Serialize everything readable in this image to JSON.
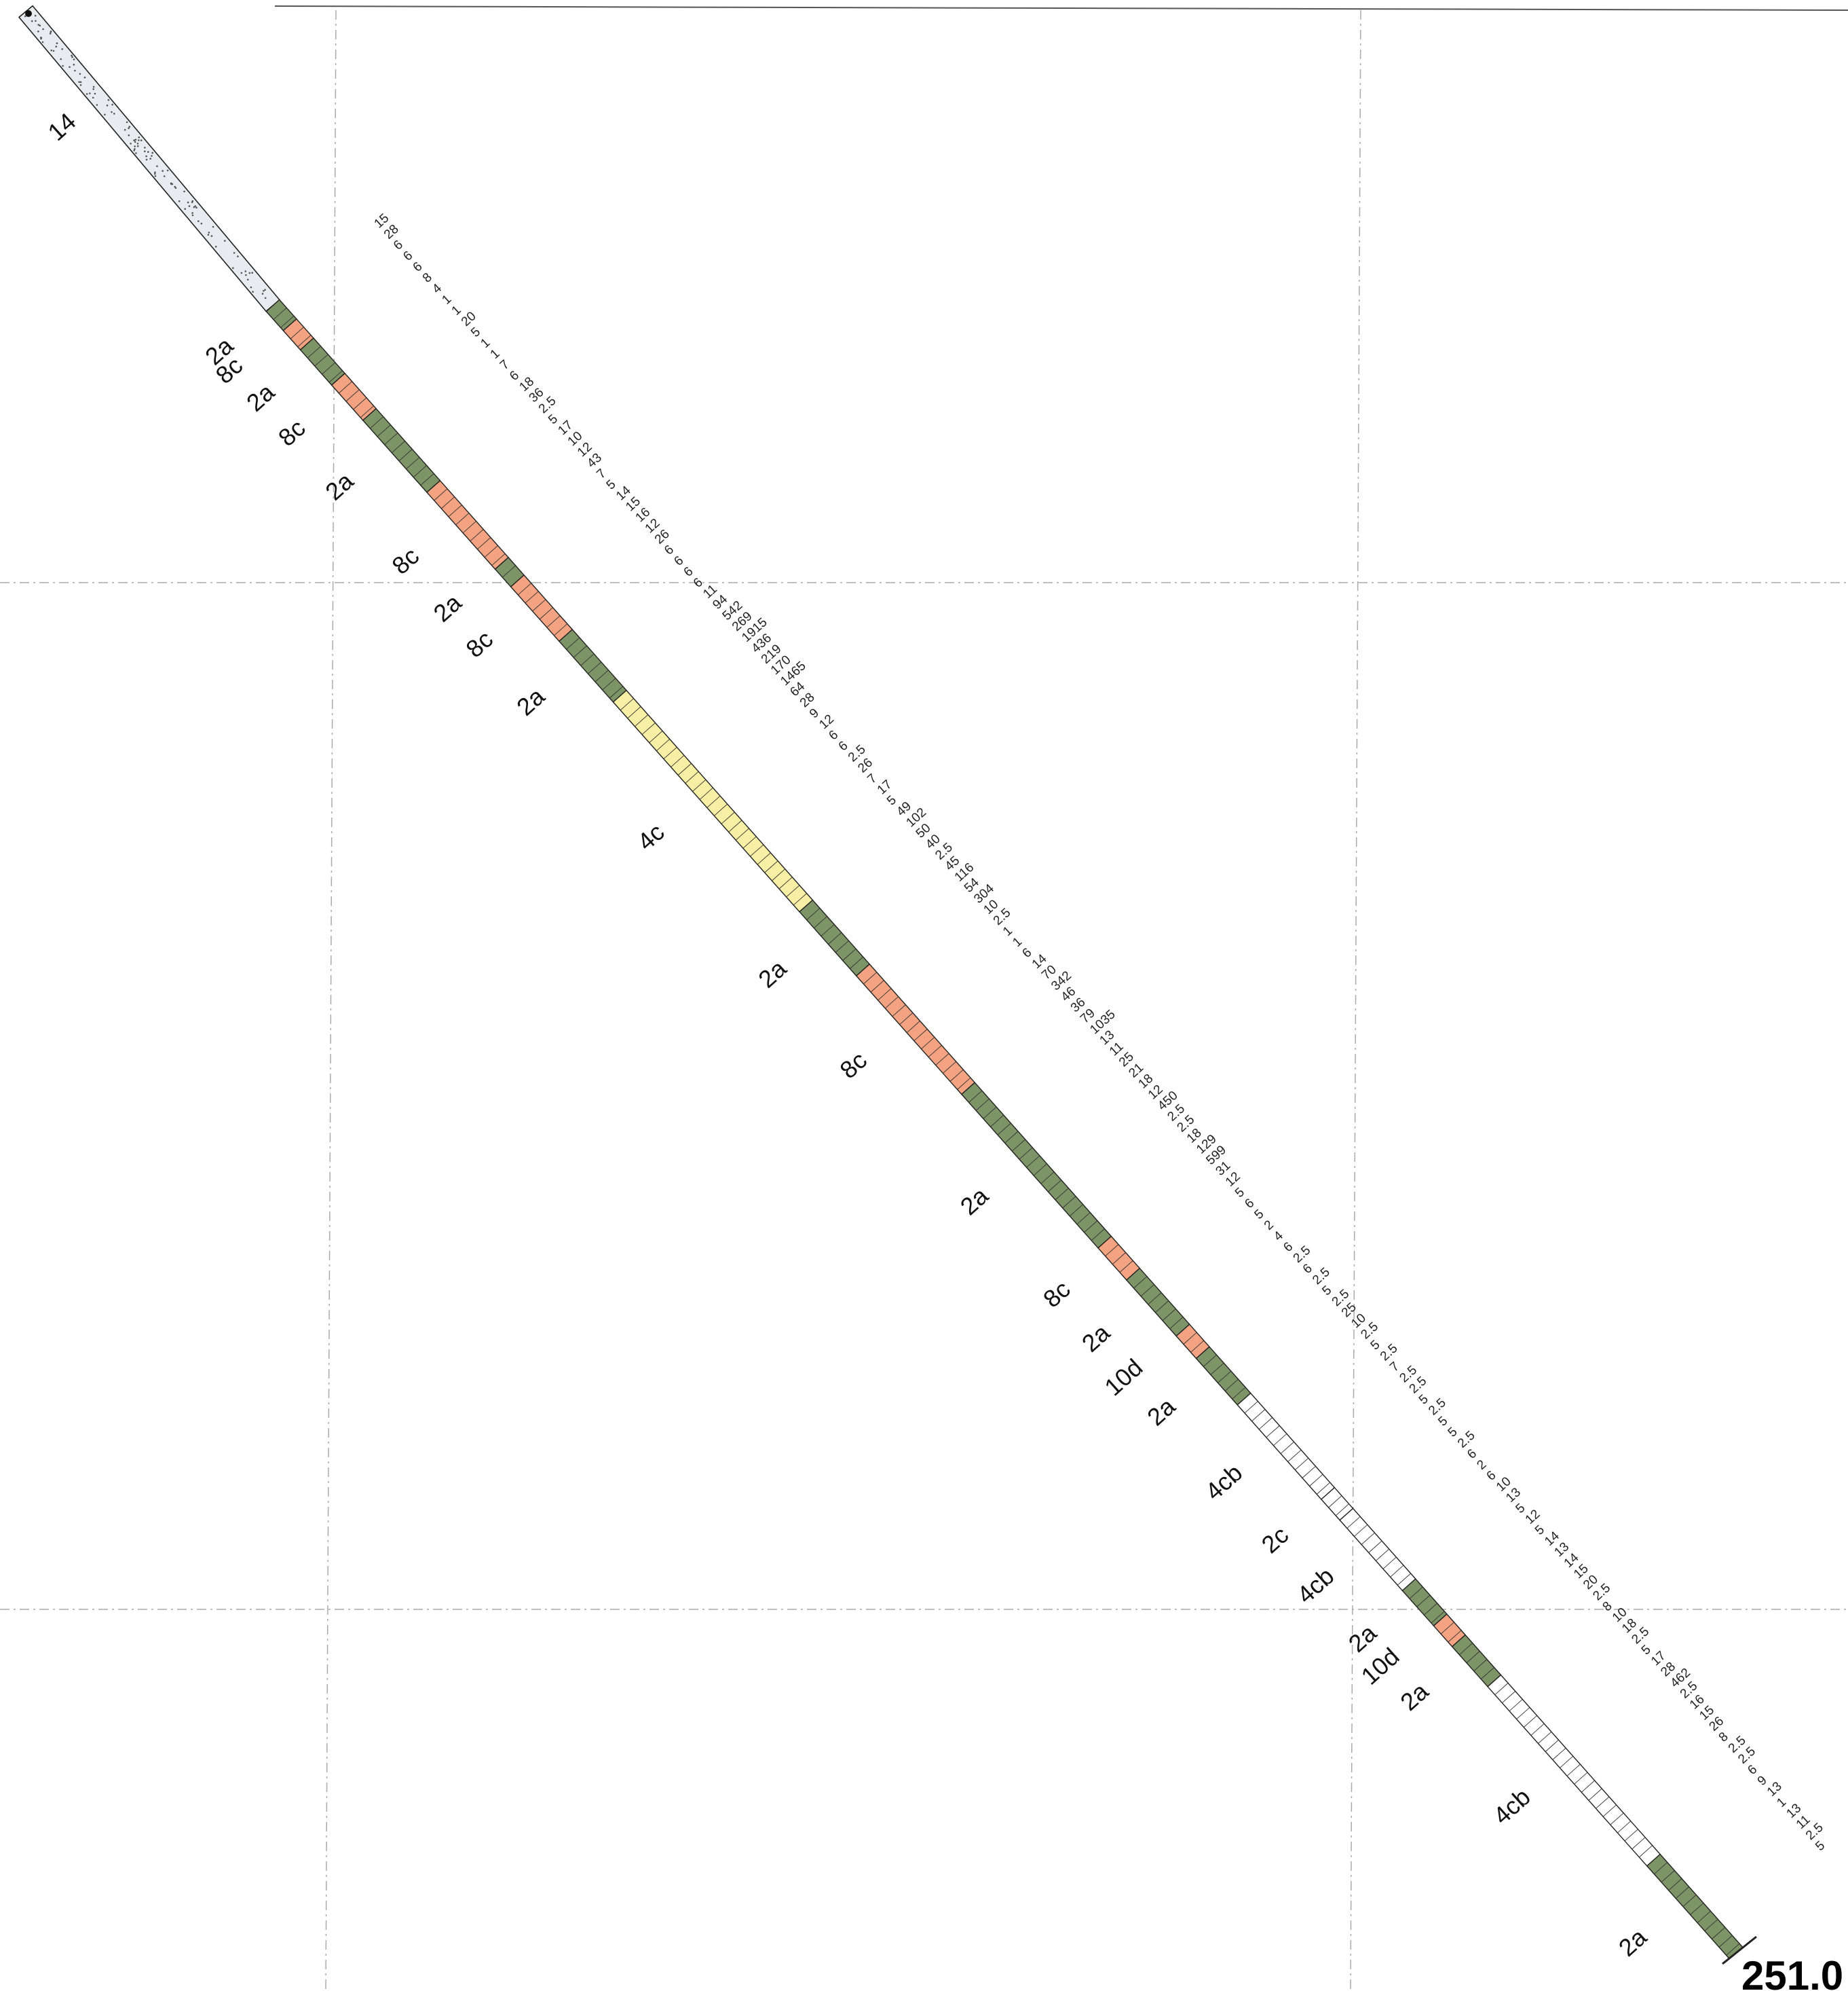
{
  "drill_log": {
    "end_depth": "251.0",
    "colors": {
      "2a": "#7d9467",
      "8c": "#f3a381",
      "10d": "#f3a381",
      "4c": "#f7f0a4",
      "4cb": "#ffffff",
      "2c": "#ffffff",
      "14": "#e9ebf1",
      "outline": "#222222"
    },
    "top_lithology": {
      "code": "14",
      "length": 0.158
    },
    "units": [
      {
        "code": "2a",
        "length": 0.012
      },
      {
        "code": "8c",
        "length": 0.012
      },
      {
        "code": "2a",
        "length": 0.022
      },
      {
        "code": "8c",
        "length": 0.022
      },
      {
        "code": "2a",
        "length": 0.045
      },
      {
        "code": "8c",
        "length": 0.048
      },
      {
        "code": "2a",
        "length": 0.011
      },
      {
        "code": "8c",
        "length": 0.034
      },
      {
        "code": "2a",
        "length": 0.038
      },
      {
        "code": "4c",
        "length": 0.131
      },
      {
        "code": "2a",
        "length": 0.04
      },
      {
        "code": "8c",
        "length": 0.074
      },
      {
        "code": "2a",
        "length": 0.096
      },
      {
        "code": "8c",
        "length": 0.02
      },
      {
        "code": "2a",
        "length": 0.035
      },
      {
        "code": "10d",
        "length": 0.014
      },
      {
        "code": "2a",
        "length": 0.029
      },
      {
        "code": "4cb",
        "length": 0.059
      },
      {
        "code": "2c",
        "length": 0.013
      },
      {
        "code": "4cb",
        "length": 0.044
      },
      {
        "code": "2a",
        "length": 0.022
      },
      {
        "code": "10d",
        "length": 0.013
      },
      {
        "code": "2a",
        "length": 0.025
      },
      {
        "code": "4cb",
        "length": 0.112
      },
      {
        "code": "2a",
        "length": 0.058
      }
    ],
    "assays": [
      "15",
      "28",
      "6",
      "6",
      "6",
      "8",
      "4",
      "1",
      "1",
      "20",
      "5",
      "1",
      "1",
      "7",
      "6",
      "18",
      "36",
      "2.5",
      "5",
      "17",
      "10",
      "12",
      "43",
      "7",
      "5",
      "14",
      "15",
      "16",
      "12",
      "26",
      "6",
      "6",
      "6",
      "6",
      "11",
      "94",
      "542",
      "269",
      "1915",
      "436",
      "219",
      "170",
      "1465",
      "64",
      "28",
      "9",
      "12",
      "6",
      "6",
      "2.5",
      "26",
      "7",
      "17",
      "5",
      "49",
      "102",
      "50",
      "40",
      "2.5",
      "45",
      "116",
      "54",
      "304",
      "10",
      "2.5",
      "1",
      "1",
      "6",
      "14",
      "70",
      "342",
      "46",
      "36",
      "79",
      "1035",
      "13",
      "11",
      "25",
      "21",
      "18",
      "12",
      "450",
      "2.5",
      "2.5",
      "18",
      "129",
      "599",
      "31",
      "12",
      "5",
      "6",
      "5",
      "2",
      "4",
      "6",
      "2.5",
      "6",
      "2.5",
      "5",
      "2.5",
      "25",
      "10",
      "2.5",
      "5",
      "2.5",
      "7",
      "2.5",
      "2.5",
      "5",
      "2.5",
      "5",
      "5",
      "2.5",
      "6",
      "2",
      "6",
      "10",
      "13",
      "5",
      "12",
      "5",
      "14",
      "13",
      "14",
      "15",
      "20",
      "2.5",
      "8",
      "10",
      "18",
      "2.5",
      "5",
      "17",
      "28",
      "462",
      "2.5",
      "16",
      "15",
      "26",
      "8",
      "2.5",
      "2.5",
      "6",
      "9",
      "13",
      "1",
      "13",
      "11",
      "2.5",
      "5"
    ]
  }
}
